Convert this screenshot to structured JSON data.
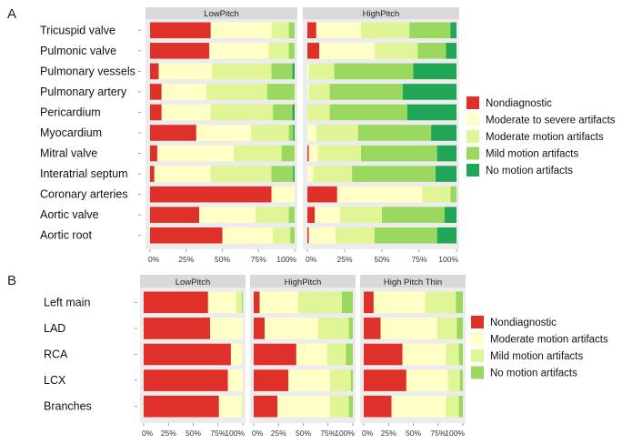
{
  "colors": {
    "Nondiagnostic": "#df3129",
    "Moderate to severe artifacts": "#ffffc6",
    "Moderate motion artifacts": "#e0f595",
    "Mild motion artifacts": "#9ad85f",
    "No motion artifacts": "#21a556",
    "panelB_moderate": "#ffffc6",
    "panelB_mild": "#e0f595",
    "panelB_none": "#9ad85f"
  },
  "chart_data": [
    {
      "type": "bar",
      "stacked": true,
      "orientation": "horizontal",
      "panel_label": "A",
      "facets": [
        "LowPitch",
        "HighPitch"
      ],
      "categories": [
        "Tricuspid valve",
        "Pulmonic valve",
        "Pulmonary vessels",
        "Pulmonary artery",
        "Pericardium",
        "Myocardium",
        "Mitral valve",
        "Interatrial septum",
        "Coronary arteries",
        "Aortic valve",
        "Aortic root"
      ],
      "legend": [
        "Nondiagnostic",
        "Moderate to severe artifacts",
        "Moderate motion artifacts",
        "Mild motion artifacts",
        "No motion artifacts"
      ],
      "legend_position": "right",
      "xticks": [
        "0%",
        "25%",
        "50%",
        "75%",
        "100%"
      ],
      "xlim": [
        0,
        100
      ],
      "series": {
        "LowPitch": [
          [
            42,
            42,
            12,
            4,
            0
          ],
          [
            41,
            41,
            14,
            4,
            0
          ],
          [
            6,
            37,
            41,
            14.5,
            1.5
          ],
          [
            8,
            31,
            42,
            19,
            0
          ],
          [
            8,
            34,
            43,
            13.5,
            1.5
          ],
          [
            32,
            38,
            26,
            3,
            1
          ],
          [
            5,
            53,
            33,
            9,
            0
          ],
          [
            3,
            39,
            42,
            15,
            1
          ],
          [
            84,
            16,
            0,
            0,
            0
          ],
          [
            34,
            39,
            23,
            4,
            0
          ],
          [
            50,
            35,
            12,
            3,
            0
          ]
        ],
        "HighPitch": [
          [
            6,
            30,
            32.5,
            27.5,
            4
          ],
          [
            8,
            37,
            29,
            19,
            7
          ],
          [
            0,
            1,
            17,
            53,
            29
          ],
          [
            0,
            1,
            14,
            49,
            36
          ],
          [
            0,
            0,
            15,
            52,
            33
          ],
          [
            0,
            6,
            28,
            49,
            17
          ],
          [
            1,
            6,
            29,
            51,
            13
          ],
          [
            0,
            4,
            26,
            56,
            14
          ],
          [
            20,
            57,
            19,
            4,
            0
          ],
          [
            5,
            17,
            28,
            42,
            8
          ],
          [
            1,
            18,
            26,
            42,
            13
          ]
        ]
      }
    },
    {
      "type": "bar",
      "stacked": true,
      "orientation": "horizontal",
      "panel_label": "B",
      "facets": [
        "LowPitch",
        "HighPitch",
        "High Pitch Thin"
      ],
      "categories": [
        "Left main",
        "LAD",
        "RCA",
        "LCX",
        "Branches"
      ],
      "legend": [
        "Nondiagnostic",
        "Moderate motion artifacts",
        "Mild motion artifacts",
        "No motion artifacts"
      ],
      "legend_position": "right",
      "xticks": [
        "0%",
        "25%",
        "50%",
        "75%",
        "100%"
      ],
      "xlim": [
        0,
        100
      ],
      "series": {
        "LowPitch": [
          [
            65,
            28.5,
            5.5,
            1
          ],
          [
            67,
            33,
            0,
            0
          ],
          [
            88,
            11.5,
            0.5,
            0
          ],
          [
            85,
            15,
            0,
            0
          ],
          [
            76,
            23,
            1,
            0
          ]
        ],
        "HighPitch": [
          [
            6,
            39,
            44,
            11
          ],
          [
            11,
            54,
            31,
            4
          ],
          [
            43,
            31,
            19,
            7
          ],
          [
            35,
            42,
            21,
            2
          ],
          [
            24,
            53,
            19,
            4
          ]
        ],
        "High Pitch Thin": [
          [
            10,
            52,
            31,
            7
          ],
          [
            17,
            57,
            20,
            6
          ],
          [
            39,
            44,
            13,
            4
          ],
          [
            43,
            42,
            12,
            3
          ],
          [
            28,
            55,
            13,
            4
          ]
        ]
      }
    }
  ]
}
